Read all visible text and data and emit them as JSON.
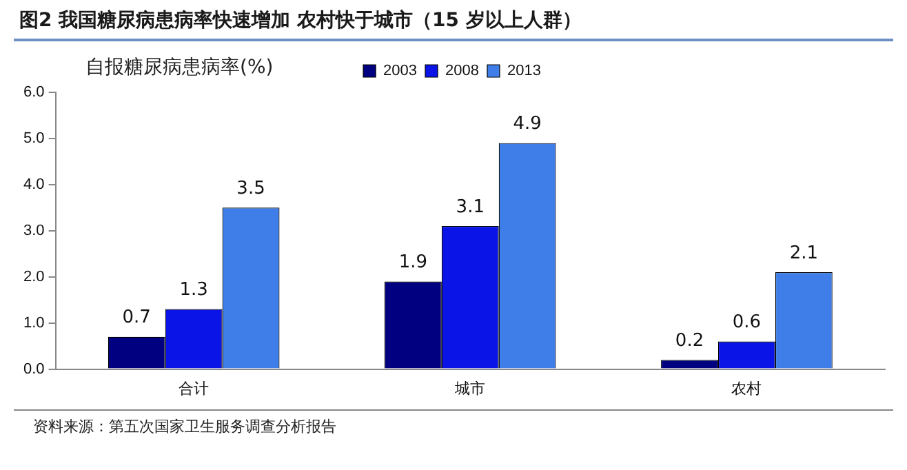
{
  "chart_data": {
    "type": "bar",
    "title": "图2  我国糖尿病患病率快速增加 农村快于城市（15 岁以上人群）",
    "ylabel": "自报糖尿病患病率(%)",
    "annotations": [
      "资料来源：第五次国家卫生服务调查分析报告"
    ],
    "categories": [
      "合计",
      "城市",
      "农村"
    ],
    "series": [
      {
        "name": "2003",
        "color": "#000080",
        "values": [
          0.7,
          1.9,
          0.2
        ]
      },
      {
        "name": "2008",
        "color": "#0a14e6",
        "values": [
          1.3,
          3.1,
          0.6
        ]
      },
      {
        "name": "2013",
        "color": "#3f7ee8",
        "values": [
          3.5,
          4.9,
          2.1
        ]
      }
    ],
    "ylim": [
      0,
      6
    ],
    "yticks": [
      {
        "value": 0,
        "label": "0.0"
      },
      {
        "value": 1,
        "label": "1.0"
      },
      {
        "value": 2,
        "label": "2.0"
      },
      {
        "value": 3,
        "label": "3.0"
      },
      {
        "value": 4,
        "label": "4.0"
      },
      {
        "value": 5,
        "label": "5.0"
      },
      {
        "value": 6,
        "label": "6.0"
      }
    ],
    "grid": false,
    "legend": "top",
    "data_labels": true
  }
}
